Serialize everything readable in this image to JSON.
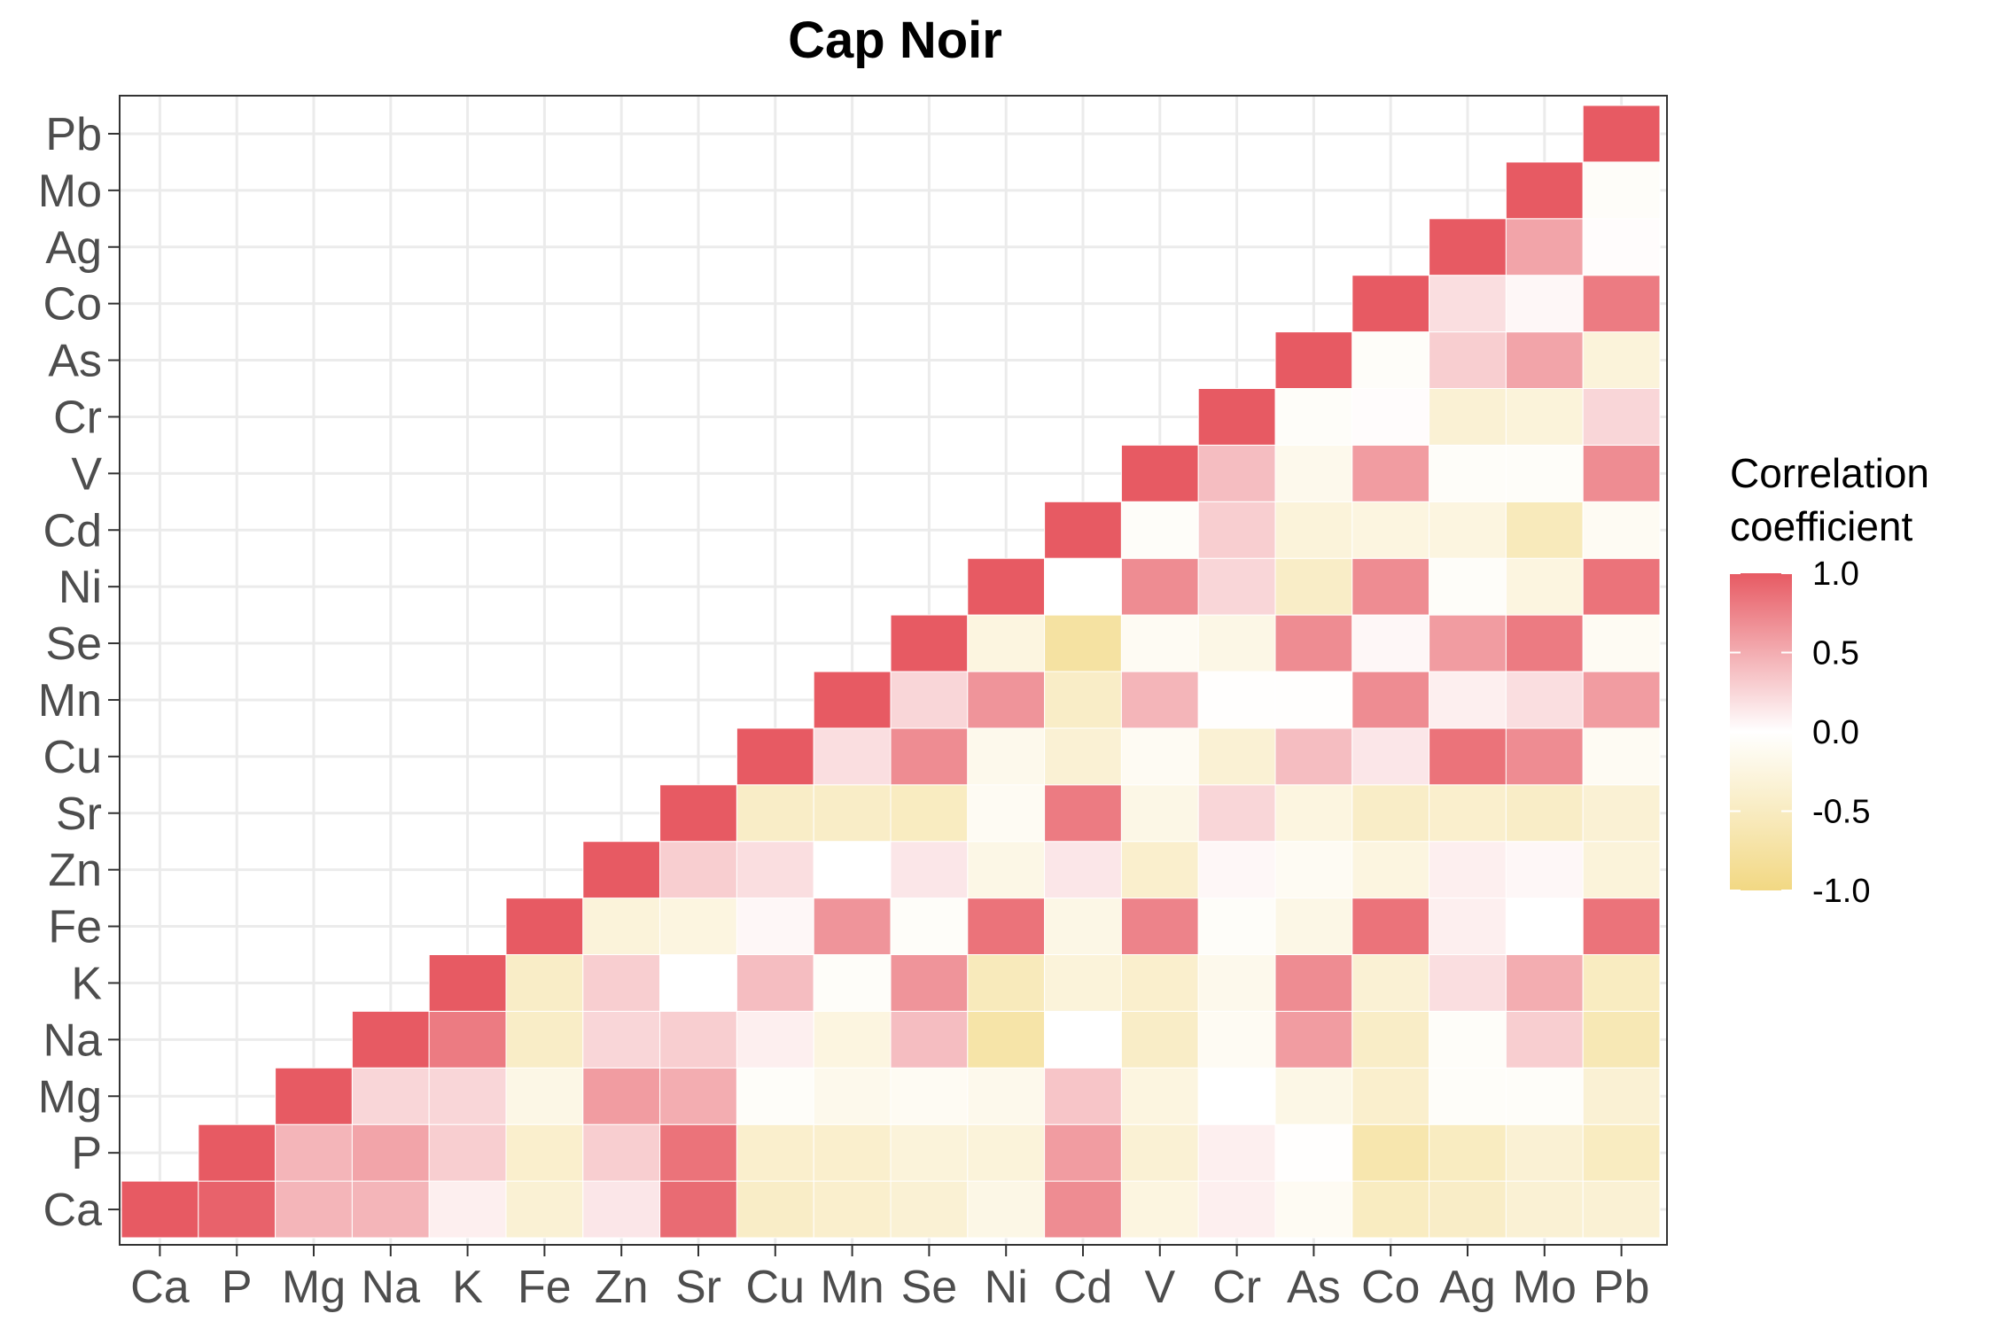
{
  "chart_data": {
    "type": "heatmap",
    "title": "Cap Noir",
    "xlabel": "",
    "ylabel": "",
    "grid": true,
    "legend_position": "right",
    "variables": [
      "Ca",
      "P",
      "Mg",
      "Na",
      "K",
      "Fe",
      "Zn",
      "Sr",
      "Cu",
      "Mn",
      "Se",
      "Ni",
      "Cd",
      "V",
      "Cr",
      "As",
      "Co",
      "Ag",
      "Mo",
      "Pb"
    ],
    "x_tick_labels": [
      "Ca",
      "P",
      "Mg",
      "Na",
      "K",
      "Fe",
      "Zn",
      "Sr",
      "Cu",
      "Mn",
      "Se",
      "Ni",
      "Cd",
      "V",
      "Cr",
      "As",
      "Co",
      "Ag",
      "Mo",
      "Pb"
    ],
    "y_tick_labels": [
      "Ca",
      "P",
      "Mg",
      "Na",
      "K",
      "Fe",
      "Zn",
      "Sr",
      "Cu",
      "Mn",
      "Se",
      "Ni",
      "Cd",
      "V",
      "Cr",
      "As",
      "Co",
      "Ag",
      "Mo",
      "Pb"
    ],
    "matrix_lower_triangle_by_column": [
      [
        1.0
      ],
      [
        0.95,
        1.0
      ],
      [
        0.45,
        0.45,
        1.0
      ],
      [
        0.45,
        0.55,
        0.25,
        1.0
      ],
      [
        0.1,
        0.3,
        0.25,
        0.8,
        1.0
      ],
      [
        -0.35,
        -0.4,
        -0.2,
        -0.45,
        -0.45,
        1.0
      ],
      [
        0.15,
        0.3,
        0.6,
        0.25,
        0.3,
        -0.3,
        1.0
      ],
      [
        0.9,
        0.85,
        0.5,
        0.3,
        0.0,
        -0.25,
        0.3,
        1.0
      ],
      [
        -0.45,
        -0.4,
        -0.05,
        0.1,
        0.4,
        0.05,
        0.2,
        -0.45,
        1.0
      ],
      [
        -0.4,
        -0.4,
        -0.15,
        -0.25,
        -0.05,
        0.65,
        0.0,
        -0.45,
        0.2,
        1.0
      ],
      [
        -0.35,
        -0.3,
        -0.1,
        0.4,
        0.65,
        -0.05,
        0.15,
        -0.5,
        0.7,
        0.25,
        1.0
      ],
      [
        -0.2,
        -0.3,
        -0.15,
        -0.7,
        -0.55,
        0.85,
        -0.2,
        -0.1,
        -0.15,
        0.65,
        -0.25,
        1.0
      ],
      [
        0.7,
        0.6,
        0.35,
        0.0,
        -0.3,
        -0.2,
        0.15,
        0.8,
        -0.35,
        -0.45,
        -0.75,
        0.0,
        1.0
      ],
      [
        -0.25,
        -0.35,
        -0.25,
        -0.45,
        -0.4,
        0.75,
        -0.4,
        -0.2,
        -0.1,
        0.45,
        -0.1,
        0.7,
        -0.05,
        1.0
      ],
      [
        0.1,
        0.1,
        0.0,
        -0.1,
        -0.15,
        -0.05,
        0.05,
        0.25,
        -0.35,
        -0.02,
        -0.2,
        0.25,
        0.3,
        0.4,
        1.0
      ],
      [
        -0.1,
        -0.02,
        -0.2,
        0.6,
        0.7,
        -0.2,
        -0.1,
        -0.25,
        0.4,
        -0.02,
        0.7,
        -0.45,
        -0.3,
        -0.15,
        -0.05,
        1.0
      ],
      [
        -0.5,
        -0.65,
        -0.4,
        -0.45,
        -0.35,
        0.85,
        -0.25,
        -0.45,
        0.15,
        0.7,
        0.05,
        0.7,
        -0.25,
        0.6,
        0.02,
        -0.05,
        1.0
      ],
      [
        -0.45,
        -0.5,
        -0.05,
        -0.05,
        0.2,
        0.1,
        0.1,
        -0.4,
        0.85,
        0.1,
        0.6,
        -0.05,
        -0.25,
        -0.05,
        -0.35,
        0.3,
        0.2,
        1.0
      ],
      [
        -0.35,
        -0.35,
        -0.05,
        0.3,
        0.5,
        0.0,
        0.05,
        -0.45,
        0.7,
        0.2,
        0.8,
        -0.25,
        -0.55,
        -0.05,
        -0.3,
        0.55,
        0.05,
        0.55,
        1.0
      ],
      [
        -0.35,
        -0.5,
        -0.35,
        -0.6,
        -0.5,
        0.85,
        -0.3,
        -0.35,
        -0.1,
        0.6,
        -0.1,
        0.85,
        -0.1,
        0.7,
        0.25,
        -0.3,
        0.8,
        0.02,
        -0.05,
        1.0
      ]
    ],
    "color_scale": {
      "low": -1.0,
      "mid": 0.0,
      "high": 1.0,
      "low_color": "#f2d883",
      "mid_color": "#ffffff",
      "high_color": "#e75a63"
    },
    "legend": {
      "title_lines": [
        "Correlation",
        "coefficient"
      ],
      "breaks": [
        "1.0",
        "0.5",
        "0.0",
        "-0.5",
        "-1.0"
      ],
      "break_values": [
        1.0,
        0.5,
        0.0,
        -0.5,
        -1.0
      ]
    }
  }
}
